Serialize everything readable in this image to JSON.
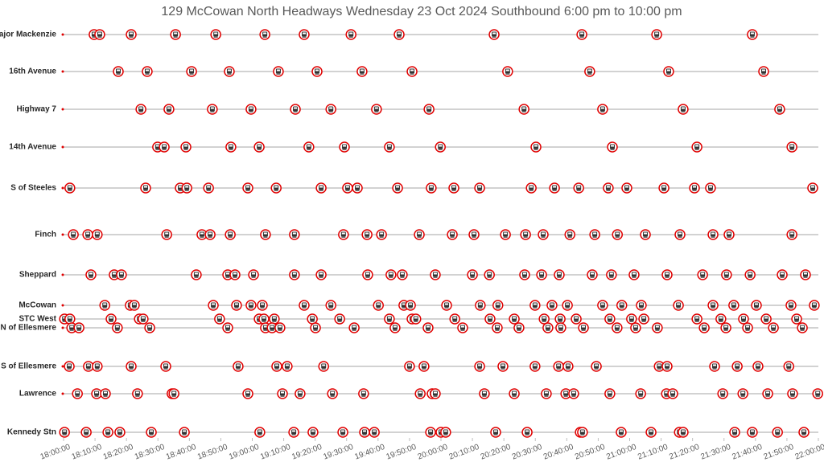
{
  "chart_data": {
    "type": "timeline",
    "title": "129 McCowan North Headways Wednesday 23 Oct 2024 Southbound 6:00 pm to 10:00 pm",
    "color": "#e00000",
    "xlim": [
      "18:00:00",
      "22:00:00"
    ],
    "xticks": [
      "18:00:00",
      "18:10:00",
      "18:20:00",
      "18:30:00",
      "18:40:00",
      "18:50:00",
      "19:00:00",
      "19:10:00",
      "19:20:00",
      "19:30:00",
      "19:40:00",
      "19:50:00",
      "20:00:00",
      "20:10:00",
      "20:20:00",
      "20:30:00",
      "20:40:00",
      "20:50:00",
      "21:00:00",
      "21:10:00",
      "21:20:00",
      "21:30:00",
      "21:40:00",
      "21:50:00",
      "22:00:00"
    ],
    "rows": [
      {
        "name": "S of Major Mackenzie",
        "times": [
          "18:09:42",
          "18:11:30",
          "18:21:30",
          "18:35:36",
          "18:48:24",
          "19:04:00",
          "19:16:30",
          "19:31:24",
          "19:46:42",
          "20:16:54",
          "20:44:48",
          "21:08:36",
          "21:39:00"
        ]
      },
      {
        "name": "16th Avenue",
        "times": [
          "18:17:24",
          "18:26:36",
          "18:40:42",
          "18:52:42",
          "19:08:18",
          "19:20:36",
          "19:34:54",
          "19:50:48",
          "20:21:12",
          "20:47:18",
          "21:12:24",
          "21:42:36"
        ]
      },
      {
        "name": "Highway 7",
        "times": [
          "18:24:36",
          "18:33:30",
          "18:47:18",
          "18:59:36",
          "19:13:42",
          "19:25:00",
          "19:39:30",
          "19:56:12",
          "20:26:24",
          "20:51:24",
          "21:17:00",
          "21:47:42"
        ]
      },
      {
        "name": "14th Avenue",
        "times": [
          "18:29:54",
          "18:32:00",
          "18:38:54",
          "18:53:12",
          "19:02:12",
          "19:18:00",
          "19:29:18",
          "19:43:36",
          "19:59:48",
          "20:30:12",
          "20:54:30",
          "21:21:24",
          "21:51:36"
        ]
      },
      {
        "name": "S of Steeles",
        "times": [
          "18:02:00",
          "18:26:06",
          "18:37:06",
          "18:39:12",
          "18:46:06",
          "18:58:36",
          "19:07:36",
          "19:21:54",
          "19:30:18",
          "19:33:24",
          "19:46:12",
          "19:56:54",
          "20:04:06",
          "20:12:18",
          "20:28:42",
          "20:36:06",
          "20:43:48",
          "20:53:12",
          "20:59:06",
          "21:10:54",
          "21:20:36",
          "21:25:42",
          "21:58:12"
        ]
      },
      {
        "name": "Finch",
        "times": [
          "18:03:06",
          "18:07:42",
          "18:10:42",
          "18:32:48",
          "18:44:00",
          "18:46:36",
          "18:53:00",
          "19:04:12",
          "19:13:24",
          "19:29:00",
          "19:36:30",
          "19:41:06",
          "19:53:06",
          "20:03:36",
          "20:10:30",
          "20:20:30",
          "20:26:54",
          "20:32:30",
          "20:41:00",
          "20:48:54",
          "20:56:06",
          "21:05:00",
          "21:16:00",
          "21:26:30",
          "21:31:36",
          "21:51:36"
        ]
      },
      {
        "name": "Sheppard",
        "times": [
          "18:08:42",
          "18:16:06",
          "18:18:24",
          "18:42:12",
          "18:52:12",
          "18:54:30",
          "19:00:24",
          "19:13:24",
          "19:21:54",
          "19:36:42",
          "19:44:06",
          "19:47:42",
          "19:58:12",
          "20:10:00",
          "20:15:24",
          "20:26:36",
          "20:32:00",
          "20:37:36",
          "20:48:06",
          "20:54:12",
          "21:01:24",
          "21:11:54",
          "21:23:12",
          "21:30:48",
          "21:38:18",
          "21:48:30",
          "21:55:54"
        ]
      },
      {
        "name": "McCowan",
        "times": [
          "18:13:06",
          "18:21:12",
          "18:22:30",
          "18:47:36",
          "18:55:00",
          "18:59:36",
          "19:03:12",
          "19:16:30",
          "19:25:00",
          "19:40:06",
          "19:48:12",
          "19:50:18",
          "20:01:48",
          "20:12:30",
          "20:18:06",
          "20:29:54",
          "20:35:18",
          "20:40:12",
          "20:51:24",
          "20:57:30",
          "21:03:42",
          "21:15:30",
          "21:26:30",
          "21:33:06",
          "21:40:18",
          "21:51:18",
          "21:58:42"
        ]
      },
      {
        "name": "STC West",
        "times": [
          "18:00:18",
          "18:02:00",
          "18:15:06",
          "18:24:06",
          "18:25:18",
          "18:49:36",
          "19:02:12",
          "19:03:42",
          "19:07:00",
          "19:19:06",
          "19:27:48",
          "19:43:36",
          "19:50:48",
          "19:52:00",
          "20:04:24",
          "20:15:36",
          "20:23:18",
          "20:32:48",
          "20:37:54",
          "20:43:00",
          "20:53:42",
          "21:00:36",
          "21:04:30",
          "21:21:24",
          "21:29:00",
          "21:36:12",
          "21:43:24",
          "21:53:06"
        ]
      },
      {
        "name": "Brimley N of Ellesmere",
        "times": [
          "18:02:36",
          "18:04:54",
          "18:17:06",
          "18:27:24",
          "18:52:12",
          "19:04:12",
          "19:06:18",
          "19:08:48",
          "19:20:06",
          "19:32:24",
          "19:45:24",
          "19:55:54",
          "20:06:54",
          "20:17:54",
          "20:24:48",
          "20:34:00",
          "20:38:06",
          "20:45:18",
          "20:56:00",
          "21:01:54",
          "21:08:48",
          "21:23:42",
          "21:30:36",
          "21:37:30",
          "21:45:42",
          "21:54:54"
        ]
      },
      {
        "name": "S of Ellesmere",
        "times": [
          "18:01:48",
          "18:07:54",
          "18:10:42",
          "18:21:30",
          "18:32:30",
          "18:55:30",
          "19:07:48",
          "19:11:06",
          "19:22:42",
          "19:50:00",
          "19:54:36",
          "20:12:18",
          "20:19:42",
          "20:29:54",
          "20:37:24",
          "20:40:24",
          "20:49:24",
          "21:09:24",
          "21:11:54",
          "21:27:00",
          "21:34:12",
          "21:40:48",
          "21:50:36"
        ]
      },
      {
        "name": "Lawrence",
        "times": [
          "18:04:24",
          "18:10:30",
          "18:13:18",
          "18:23:30",
          "18:34:30",
          "18:35:06",
          "18:58:36",
          "19:09:36",
          "19:15:12",
          "19:25:30",
          "19:35:24",
          "19:53:24",
          "19:57:12",
          "19:58:12",
          "20:13:48",
          "20:23:18",
          "20:33:30",
          "20:39:42",
          "20:42:12",
          "20:53:42",
          "21:03:30",
          "21:11:42",
          "21:13:42",
          "21:29:36",
          "21:36:00",
          "21:43:54",
          "21:51:48",
          "21:59:48"
        ]
      },
      {
        "name": "Kennedy Stn",
        "times": [
          "18:00:18",
          "18:07:12",
          "18:14:06",
          "18:17:54",
          "18:27:54",
          "18:38:24",
          "19:02:24",
          "19:13:12",
          "19:19:18",
          "19:28:48",
          "19:35:42",
          "19:38:48",
          "19:56:42",
          "20:00:00",
          "20:01:30",
          "20:17:24",
          "20:27:24",
          "20:44:18",
          "20:45:00",
          "20:57:18",
          "21:06:48",
          "21:15:48",
          "21:17:00",
          "21:33:24",
          "21:39:00",
          "21:47:00",
          "21:55:24"
        ]
      }
    ]
  }
}
